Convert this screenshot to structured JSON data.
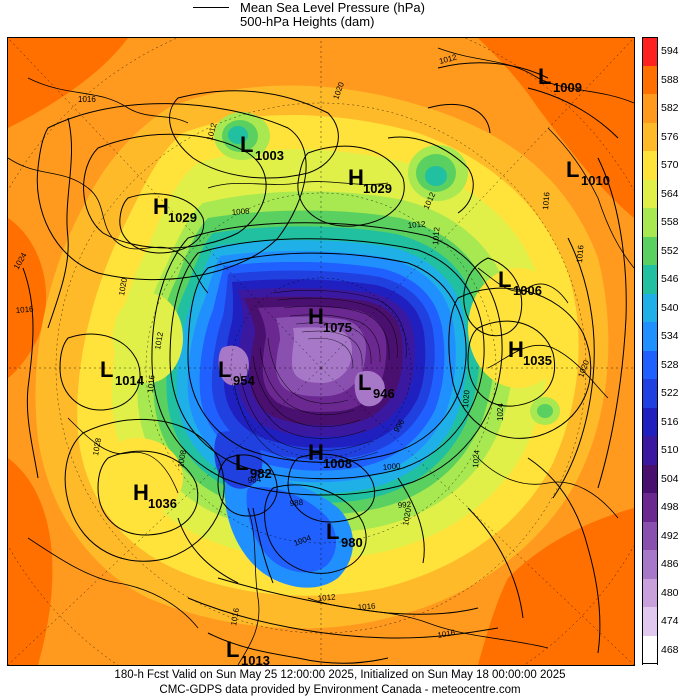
{
  "legend": {
    "line_label_1": "Mean Sea Level Pressure (hPa)",
    "line_label_2": "500-hPa Heights (dam)"
  },
  "colorbar": {
    "ticks": [
      "594",
      "588",
      "582",
      "576",
      "570",
      "564",
      "558",
      "552",
      "546",
      "540",
      "534",
      "528",
      "522",
      "516",
      "510",
      "504",
      "498",
      "492",
      "486",
      "480",
      "474",
      "468"
    ],
    "colors": [
      "#ff2020",
      "#ff7000",
      "#ff9a1e",
      "#ffba2a",
      "#ffe23a",
      "#e0f048",
      "#a8e850",
      "#5ad060",
      "#20c0a0",
      "#20b0e8",
      "#2090ff",
      "#2060ff",
      "#2040e0",
      "#2020c0",
      "#3a18a0",
      "#4a1070",
      "#6a2890",
      "#8a50b0",
      "#a878c8",
      "#c8a0dc",
      "#e0c8ee",
      "#ffffff"
    ]
  },
  "systems": [
    {
      "kind": "L",
      "value": "1009"
    },
    {
      "kind": "L",
      "value": "1003"
    },
    {
      "kind": "H",
      "value": "1029"
    },
    {
      "kind": "H",
      "value": "1029"
    },
    {
      "kind": "L",
      "value": "1010"
    },
    {
      "kind": "L",
      "value": "1006"
    },
    {
      "kind": "H",
      "value": "1075"
    },
    {
      "kind": "H",
      "value": "1035"
    },
    {
      "kind": "L",
      "value": "1014"
    },
    {
      "kind": "L",
      "value": "954"
    },
    {
      "kind": "L",
      "value": "946"
    },
    {
      "kind": "L",
      "value": "982"
    },
    {
      "kind": "H",
      "value": "1008"
    },
    {
      "kind": "H",
      "value": "1036"
    },
    {
      "kind": "L",
      "value": "980"
    },
    {
      "kind": "L",
      "value": "1013"
    }
  ],
  "isobar_labels": [
    "1012",
    "1016",
    "1020",
    "1012",
    "1012",
    "1008",
    "1012",
    "1016",
    "1020",
    "1024",
    "1016",
    "1016",
    "1024",
    "1020",
    "1016",
    "1012",
    "1028",
    "1008",
    "1000",
    "996",
    "1024",
    "1020",
    "1012",
    "1016",
    "1012",
    "1016",
    "988",
    "1004",
    "984",
    "992",
    "1020",
    "1016"
  ],
  "footer": {
    "line1": "180-h Fcst Valid on Sun May 25 12:00:00 2025, Initialized on Sun May 18 00:00:00 2025",
    "line2": "CMC-GDPS data provided by Environment Canada - meteocentre.com"
  }
}
